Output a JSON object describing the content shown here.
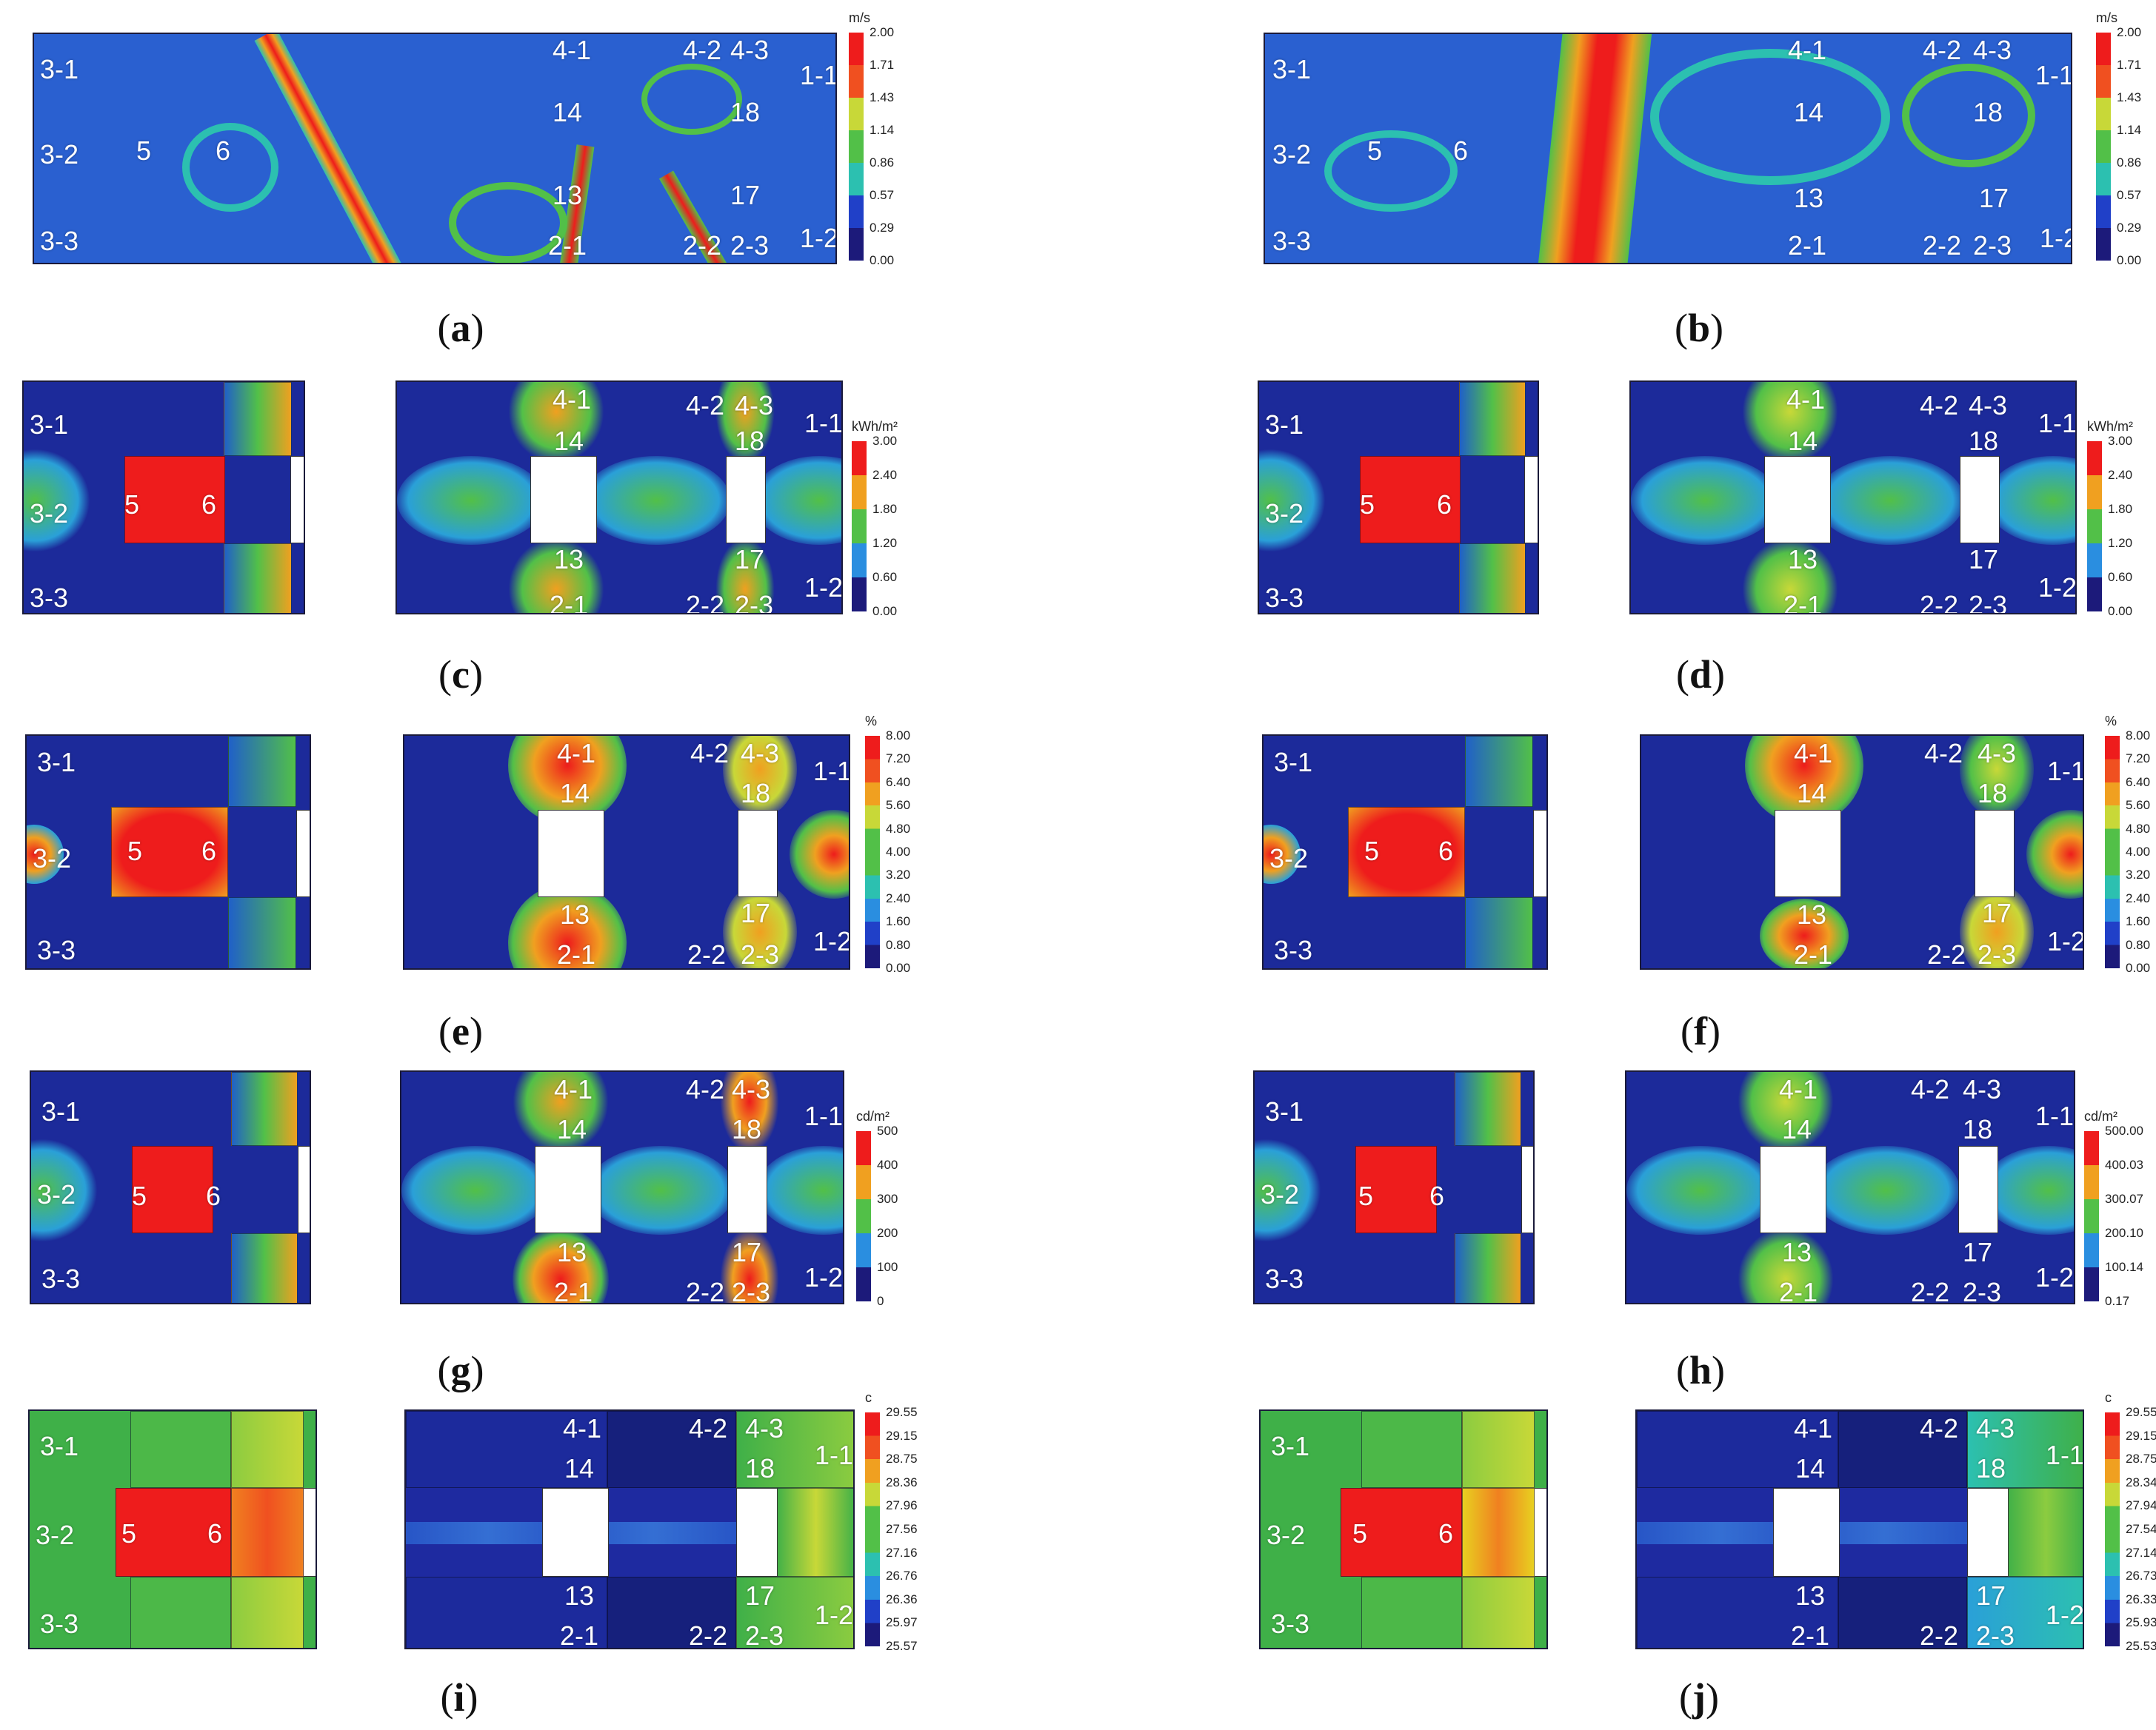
{
  "colorbars": {
    "wind": {
      "unit": "m/s",
      "ticks": [
        "2.00",
        "1.71",
        "1.43",
        "1.14",
        "0.86",
        "0.57",
        "0.29",
        "0.00"
      ]
    },
    "radiation": {
      "unit": "kWh/m²",
      "ticks": [
        "3.00",
        "2.40",
        "1.80",
        "1.20",
        "0.60",
        "0.00"
      ]
    },
    "percent": {
      "unit": "%",
      "ticks": [
        "8.00",
        "7.20",
        "6.40",
        "5.60",
        "4.80",
        "4.00",
        "3.20",
        "2.40",
        "1.60",
        "0.80",
        "0.00"
      ]
    },
    "luminance_g": {
      "unit": "cd/m²",
      "ticks": [
        "500",
        "400",
        "300",
        "200",
        "100",
        "0"
      ]
    },
    "luminance_h": {
      "unit": "cd/m²",
      "ticks": [
        "500.00",
        "400.03",
        "300.07",
        "200.10",
        "100.14",
        "0.17"
      ]
    },
    "temp_i": {
      "unit": "c",
      "ticks": [
        "29.55",
        "29.15",
        "28.75",
        "28.36",
        "27.96",
        "27.56",
        "27.16",
        "26.76",
        "26.36",
        "25.97",
        "25.57"
      ]
    },
    "temp_j": {
      "unit": "c",
      "ticks": [
        "29.55",
        "29.15",
        "28.75",
        "28.34",
        "27.94",
        "27.54",
        "27.14",
        "26.73",
        "26.33",
        "25.93",
        "25.53"
      ]
    }
  },
  "colors": {
    "scale": [
      "#1c1a7a",
      "#2040c8",
      "#2a8ee0",
      "#2cc0b0",
      "#52c048",
      "#c8d838",
      "#f0a020",
      "#f05020",
      "#ee1c1c"
    ]
  },
  "zones": {
    "z3_1": "3-1",
    "z3_2": "3-2",
    "z3_3": "3-3",
    "z5": "5",
    "z6": "6",
    "z4_1": "4-1",
    "z4_2": "4-2",
    "z4_3": "4-3",
    "z1_1": "1-1",
    "z14": "14",
    "z18": "18",
    "z13": "13",
    "z17": "17",
    "z2_1": "2-1",
    "z2_2": "2-2",
    "z2_3": "2-3",
    "z1_2": "1-2"
  },
  "captions": {
    "a": "a",
    "b": "b",
    "c": "c",
    "d": "d",
    "e": "e",
    "f": "f",
    "g": "g",
    "h": "h",
    "i": "i",
    "j": "j"
  }
}
